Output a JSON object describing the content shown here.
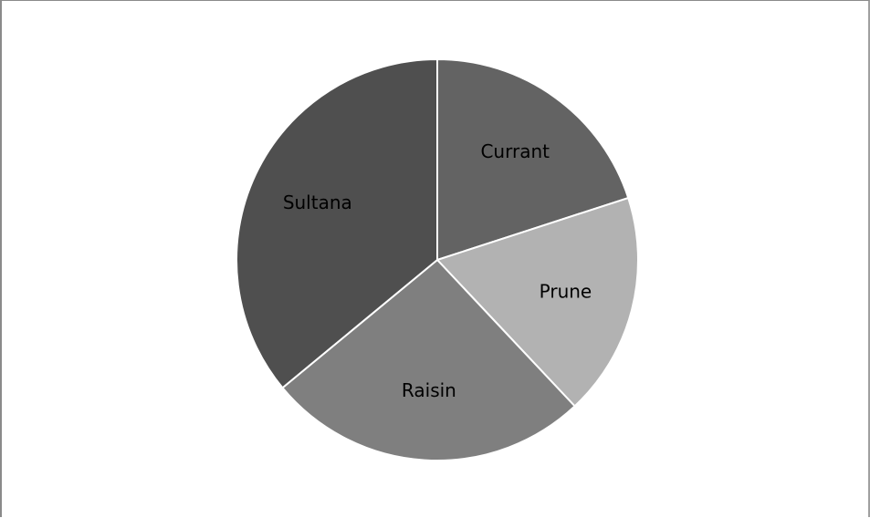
{
  "chart_data": {
    "type": "pie",
    "title": "",
    "start_angle_deg": 0,
    "direction": "clockwise",
    "slices": [
      {
        "label": "Currant",
        "value": 20,
        "color": "#636363"
      },
      {
        "label": "Prune",
        "value": 18,
        "color": "#b2b2b2"
      },
      {
        "label": "Raisin",
        "value": 26,
        "color": "#7f7f7f"
      },
      {
        "label": "Sultana",
        "value": 36,
        "color": "#4f4f4f"
      }
    ],
    "legend": "none",
    "labels_inside": true
  }
}
